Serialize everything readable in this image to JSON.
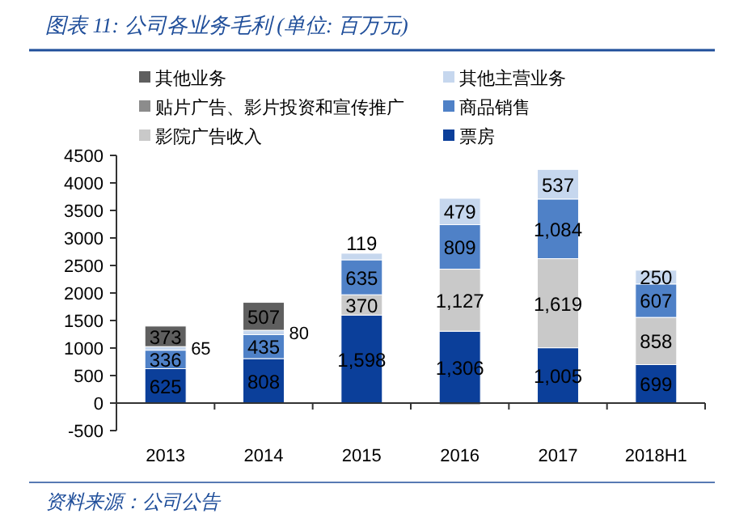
{
  "chart_data": {
    "type": "bar",
    "title": "图表 11: 公司各业务毛利 (单位: 百万元)",
    "annotations": [
      "资料来源：公司公告"
    ],
    "categories": [
      "2013",
      "2014",
      "2015",
      "2016",
      "2017",
      "2018H1"
    ],
    "stacked": true,
    "legend": "top",
    "grid": false,
    "ylim": [
      -500,
      4500
    ],
    "yticks": [
      -500,
      0,
      500,
      1000,
      1500,
      2000,
      2500,
      3000,
      3500,
      4000,
      4500
    ],
    "series": [
      {
        "name": "票房",
        "color": "#0b3f9a",
        "values": [
          625,
          808,
          1598,
          1306,
          1005,
          699
        ],
        "value_labels": [
          "625",
          "808",
          "1,598",
          "1,306",
          "1,005",
          "699"
        ]
      },
      {
        "name": "影院广告收入",
        "color": "#c9c9c9",
        "values": [
          null,
          null,
          370,
          1127,
          1619,
          858
        ],
        "value_labels": [
          null,
          null,
          "370",
          "1,127",
          "1,619",
          "858"
        ]
      },
      {
        "name": "商品销售",
        "color": "#4f81c7",
        "values": [
          336,
          435,
          635,
          809,
          1084,
          607
        ],
        "value_labels": [
          "336",
          "435",
          "635",
          "809",
          "1,084",
          "607"
        ]
      },
      {
        "name": "其他主营业务",
        "color": "#c6d7ee",
        "values": [
          65,
          80,
          119,
          479,
          537,
          250
        ],
        "value_labels": [
          "65",
          "80",
          "119",
          "479",
          "537",
          "250"
        ]
      },
      {
        "name": "贴片广告、影片投资和宣传推广",
        "color": "#8c8c8c",
        "values": [
          null,
          null,
          null,
          -30,
          null,
          null
        ],
        "value_labels": [
          null,
          null,
          null,
          null,
          null,
          null
        ]
      },
      {
        "name": "其他业务",
        "color": "#5f5f5f",
        "values": [
          373,
          507,
          null,
          null,
          null,
          null
        ],
        "value_labels": [
          "373",
          "507",
          null,
          null,
          null,
          null
        ]
      }
    ]
  }
}
